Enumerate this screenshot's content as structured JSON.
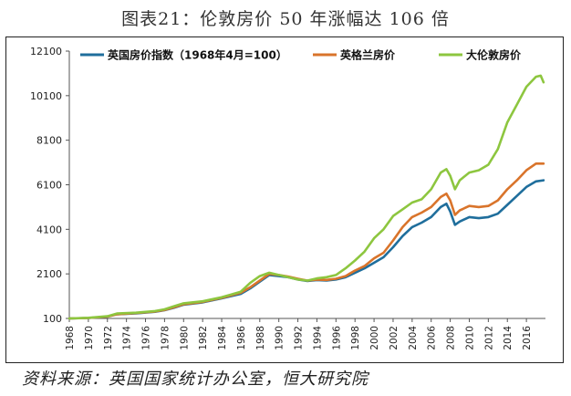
{
  "title": "图表21：伦敦房价 50 年涨幅达 106 倍",
  "source": "资料来源：英国国家统计办公室，恒大研究院",
  "chart_data": {
    "type": "line",
    "ylim": [
      100,
      12100
    ],
    "yticks": [
      100,
      2100,
      4100,
      6100,
      8100,
      10100,
      12100
    ],
    "xlim": [
      1968,
      2018
    ],
    "xticks": [
      1968,
      1970,
      1972,
      1974,
      1976,
      1978,
      1980,
      1982,
      1984,
      1986,
      1988,
      1990,
      1992,
      1994,
      1996,
      1998,
      2000,
      2002,
      2004,
      2006,
      2008,
      2010,
      2012,
      2014,
      2016
    ],
    "legend_position": "top",
    "series": [
      {
        "name": "英国房价指数（1968年4月=100）",
        "color": "#1f6e9c",
        "points": [
          [
            1968,
            100
          ],
          [
            1970,
            120
          ],
          [
            1972,
            180
          ],
          [
            1973,
            290
          ],
          [
            1975,
            330
          ],
          [
            1977,
            400
          ],
          [
            1978,
            470
          ],
          [
            1979,
            580
          ],
          [
            1980,
            720
          ],
          [
            1982,
            820
          ],
          [
            1984,
            1000
          ],
          [
            1986,
            1200
          ],
          [
            1987,
            1450
          ],
          [
            1988,
            1750
          ],
          [
            1989,
            2050
          ],
          [
            1990,
            2000
          ],
          [
            1991,
            1950
          ],
          [
            1992,
            1850
          ],
          [
            1993,
            1780
          ],
          [
            1994,
            1820
          ],
          [
            1995,
            1800
          ],
          [
            1996,
            1850
          ],
          [
            1997,
            1950
          ],
          [
            1998,
            2150
          ],
          [
            1999,
            2350
          ],
          [
            2000,
            2600
          ],
          [
            2001,
            2850
          ],
          [
            2002,
            3300
          ],
          [
            2003,
            3800
          ],
          [
            2004,
            4200
          ],
          [
            2005,
            4400
          ],
          [
            2006,
            4650
          ],
          [
            2007,
            5100
          ],
          [
            2007.6,
            5250
          ],
          [
            2008,
            4900
          ],
          [
            2008.5,
            4300
          ],
          [
            2009,
            4450
          ],
          [
            2010,
            4650
          ],
          [
            2011,
            4600
          ],
          [
            2012,
            4650
          ],
          [
            2013,
            4800
          ],
          [
            2014,
            5200
          ],
          [
            2015,
            5600
          ],
          [
            2016,
            6000
          ],
          [
            2017,
            6250
          ],
          [
            2017.8,
            6300
          ]
        ]
      },
      {
        "name": "英格兰房价",
        "color": "#d9742b",
        "points": [
          [
            1968,
            100
          ],
          [
            1970,
            120
          ],
          [
            1972,
            180
          ],
          [
            1973,
            290
          ],
          [
            1975,
            340
          ],
          [
            1977,
            410
          ],
          [
            1978,
            480
          ],
          [
            1979,
            600
          ],
          [
            1980,
            740
          ],
          [
            1982,
            840
          ],
          [
            1984,
            1020
          ],
          [
            1986,
            1250
          ],
          [
            1987,
            1500
          ],
          [
            1988,
            1800
          ],
          [
            1989,
            2100
          ],
          [
            1990,
            2050
          ],
          [
            1991,
            1980
          ],
          [
            1992,
            1880
          ],
          [
            1993,
            1800
          ],
          [
            1994,
            1840
          ],
          [
            1995,
            1830
          ],
          [
            1996,
            1880
          ],
          [
            1997,
            2000
          ],
          [
            1998,
            2250
          ],
          [
            1999,
            2450
          ],
          [
            2000,
            2800
          ],
          [
            2001,
            3050
          ],
          [
            2002,
            3600
          ],
          [
            2003,
            4200
          ],
          [
            2004,
            4650
          ],
          [
            2005,
            4850
          ],
          [
            2006,
            5100
          ],
          [
            2007,
            5550
          ],
          [
            2007.6,
            5700
          ],
          [
            2008,
            5400
          ],
          [
            2008.5,
            4750
          ],
          [
            2009,
            4950
          ],
          [
            2010,
            5150
          ],
          [
            2011,
            5100
          ],
          [
            2012,
            5150
          ],
          [
            2013,
            5400
          ],
          [
            2014,
            5900
          ],
          [
            2015,
            6300
          ],
          [
            2016,
            6750
          ],
          [
            2017,
            7050
          ],
          [
            2017.8,
            7050
          ]
        ]
      },
      {
        "name": "大伦敦房价",
        "color": "#8dc63f",
        "points": [
          [
            1968,
            100
          ],
          [
            1970,
            130
          ],
          [
            1972,
            200
          ],
          [
            1973,
            320
          ],
          [
            1975,
            360
          ],
          [
            1977,
            430
          ],
          [
            1978,
            510
          ],
          [
            1979,
            650
          ],
          [
            1980,
            780
          ],
          [
            1982,
            870
          ],
          [
            1984,
            1050
          ],
          [
            1986,
            1300
          ],
          [
            1987,
            1700
          ],
          [
            1988,
            2000
          ],
          [
            1989,
            2150
          ],
          [
            1990,
            2050
          ],
          [
            1991,
            1950
          ],
          [
            1992,
            1850
          ],
          [
            1993,
            1800
          ],
          [
            1994,
            1900
          ],
          [
            1995,
            1950
          ],
          [
            1996,
            2050
          ],
          [
            1997,
            2350
          ],
          [
            1998,
            2700
          ],
          [
            1999,
            3100
          ],
          [
            2000,
            3700
          ],
          [
            2001,
            4100
          ],
          [
            2002,
            4700
          ],
          [
            2003,
            5000
          ],
          [
            2004,
            5300
          ],
          [
            2005,
            5450
          ],
          [
            2006,
            5900
          ],
          [
            2007,
            6650
          ],
          [
            2007.6,
            6800
          ],
          [
            2008,
            6500
          ],
          [
            2008.5,
            5900
          ],
          [
            2009,
            6300
          ],
          [
            2010,
            6650
          ],
          [
            2011,
            6750
          ],
          [
            2012,
            7000
          ],
          [
            2013,
            7700
          ],
          [
            2014,
            8900
          ],
          [
            2015,
            9700
          ],
          [
            2016,
            10500
          ],
          [
            2017,
            10950
          ],
          [
            2017.5,
            11000
          ],
          [
            2017.8,
            10700
          ]
        ]
      }
    ]
  }
}
